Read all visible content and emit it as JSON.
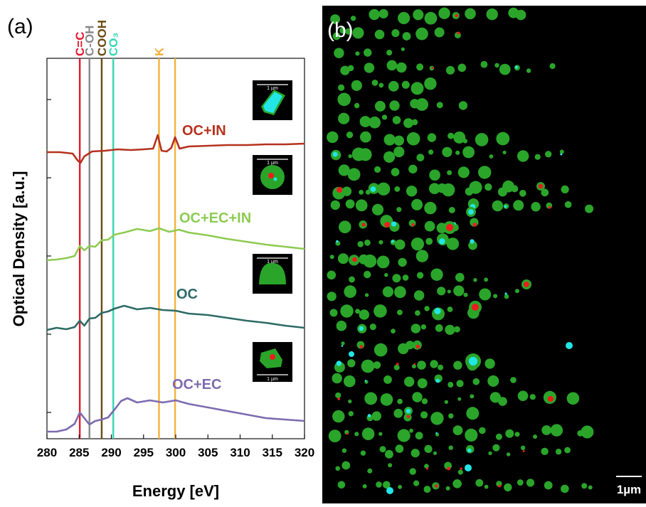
{
  "panel_a_label": "(a)",
  "panel_b_label": "(b)",
  "scale_bar_label": "1µm",
  "colors": {
    "carbon": "#2aa52a",
    "inorganic": "#ee1c1c",
    "carbonate": "#22e6e6",
    "background_b": "#000000"
  },
  "chart_data": {
    "type": "line",
    "xlabel": "Energy [eV]",
    "ylabel": "Optical Density [a.u.]",
    "xlim": [
      280,
      320
    ],
    "ticks": [
      280,
      285,
      290,
      295,
      300,
      305,
      310,
      315,
      320
    ],
    "reference_lines": [
      {
        "label": "C=C",
        "energy": 285.1,
        "color": "#e8162c"
      },
      {
        "label": "C-OH",
        "energy": 286.6,
        "color": "#888888"
      },
      {
        "label": "COOH",
        "energy": 288.5,
        "color": "#6b4a12"
      },
      {
        "label": "CO₃",
        "energy": 290.3,
        "color": "#33d6b4"
      },
      {
        "label": "K",
        "energy": 297.4,
        "color": "#f5b13c"
      },
      {
        "label": "",
        "energy": 299.9,
        "color": "#f5b13c"
      }
    ],
    "series": [
      {
        "name": "OC+IN",
        "color": "#b5321e",
        "x": [
          280,
          282,
          284,
          284.8,
          285.2,
          285.8,
          287,
          289,
          291,
          293,
          295,
          296.5,
          297.2,
          297.8,
          298.6,
          299.3,
          299.9,
          300.6,
          302,
          305,
          308,
          311,
          314,
          317,
          320
        ],
        "y": [
          214,
          214,
          216,
          226,
          229,
          220,
          213,
          212,
          210,
          211,
          210,
          209,
          190,
          212,
          213,
          208,
          193,
          209,
          206,
          205,
          204,
          204,
          203,
          203,
          202
        ]
      },
      {
        "name": "OC+EC+IN",
        "color": "#8ecb52",
        "x": [
          280,
          281.5,
          283,
          284.3,
          285.1,
          285.8,
          286.6,
          287.5,
          288.5,
          289.5,
          290.5,
          292,
          294,
          296,
          297.4,
          299,
          300.5,
          302,
          305,
          308,
          311,
          314,
          317,
          320
        ],
        "y": [
          366,
          365,
          363,
          360,
          346,
          352,
          346,
          347,
          338,
          337,
          330,
          327,
          322,
          325,
          321,
          326,
          323,
          327,
          331,
          336,
          340,
          344,
          347,
          350
        ]
      },
      {
        "name": "OC",
        "color": "#2d6b66",
        "x": [
          280,
          281.5,
          283,
          284.3,
          285.1,
          285.8,
          286.6,
          287.5,
          288.5,
          289.5,
          290.5,
          292,
          294,
          296,
          298,
          300,
          302,
          305,
          308,
          311,
          314,
          317,
          320
        ],
        "y": [
          464,
          461,
          463,
          460,
          451,
          458,
          448,
          447,
          440,
          438,
          434,
          430,
          435,
          433,
          436,
          437,
          441,
          443,
          447,
          451,
          454,
          458,
          461
        ]
      },
      {
        "name": "OC+EC",
        "color": "#7d6ab0",
        "x": [
          280,
          281.5,
          283,
          284.3,
          285.1,
          285.8,
          286.6,
          287.5,
          288.5,
          289.5,
          290.5,
          291.5,
          292.5,
          294,
          296,
          298,
          300,
          302,
          305,
          308,
          311,
          314,
          317,
          320
        ],
        "y": [
          607,
          607,
          604,
          596,
          580,
          588,
          597,
          592,
          590,
          587,
          576,
          564,
          560,
          566,
          563,
          566,
          563,
          568,
          573,
          578,
          583,
          588,
          590,
          592
        ]
      }
    ]
  },
  "insets": [
    {
      "scale_label": "1 µm",
      "type": "rod"
    },
    {
      "scale_label": "1 µm",
      "type": "round-mixed"
    },
    {
      "scale_label": "1 µm",
      "type": "dome"
    },
    {
      "scale_label": "1 µm",
      "type": "irregular-mixed"
    }
  ]
}
